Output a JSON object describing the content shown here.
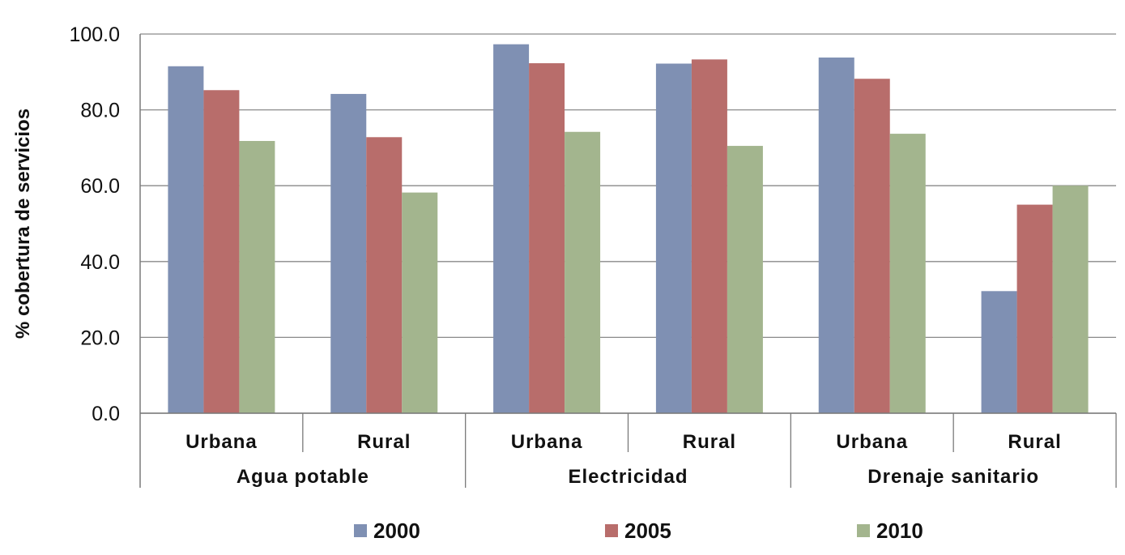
{
  "chart_data": {
    "type": "bar",
    "title": "",
    "xlabel": "",
    "ylabel": "% cobertura de servicios",
    "ylim": [
      0,
      100
    ],
    "yticks": [
      "0.0",
      "20.0",
      "40.0",
      "60.0",
      "80.0",
      "100.0"
    ],
    "grid": true,
    "legend_position": "bottom",
    "groups": [
      {
        "label": "Agua potable",
        "subcategories": [
          "Urbana",
          "Rural"
        ]
      },
      {
        "label": "Electricidad",
        "subcategories": [
          "Urbana",
          "Rural"
        ]
      },
      {
        "label": "Drenaje sanitario",
        "subcategories": [
          "Urbana",
          "Rural"
        ]
      }
    ],
    "categories": [
      "Urbana",
      "Rural",
      "Urbana",
      "Rural",
      "Urbana",
      "Rural"
    ],
    "series": [
      {
        "name": "2000",
        "color": "#7f90b3",
        "values": [
          91.5,
          84.2,
          97.3,
          92.2,
          93.8,
          32.2
        ]
      },
      {
        "name": "2005",
        "color": "#b86d6b",
        "values": [
          85.2,
          72.8,
          92.3,
          93.3,
          88.2,
          55.0
        ]
      },
      {
        "name": "2010",
        "color": "#a3b58e",
        "values": [
          71.8,
          58.2,
          74.2,
          70.5,
          73.7,
          60.0
        ]
      }
    ]
  }
}
